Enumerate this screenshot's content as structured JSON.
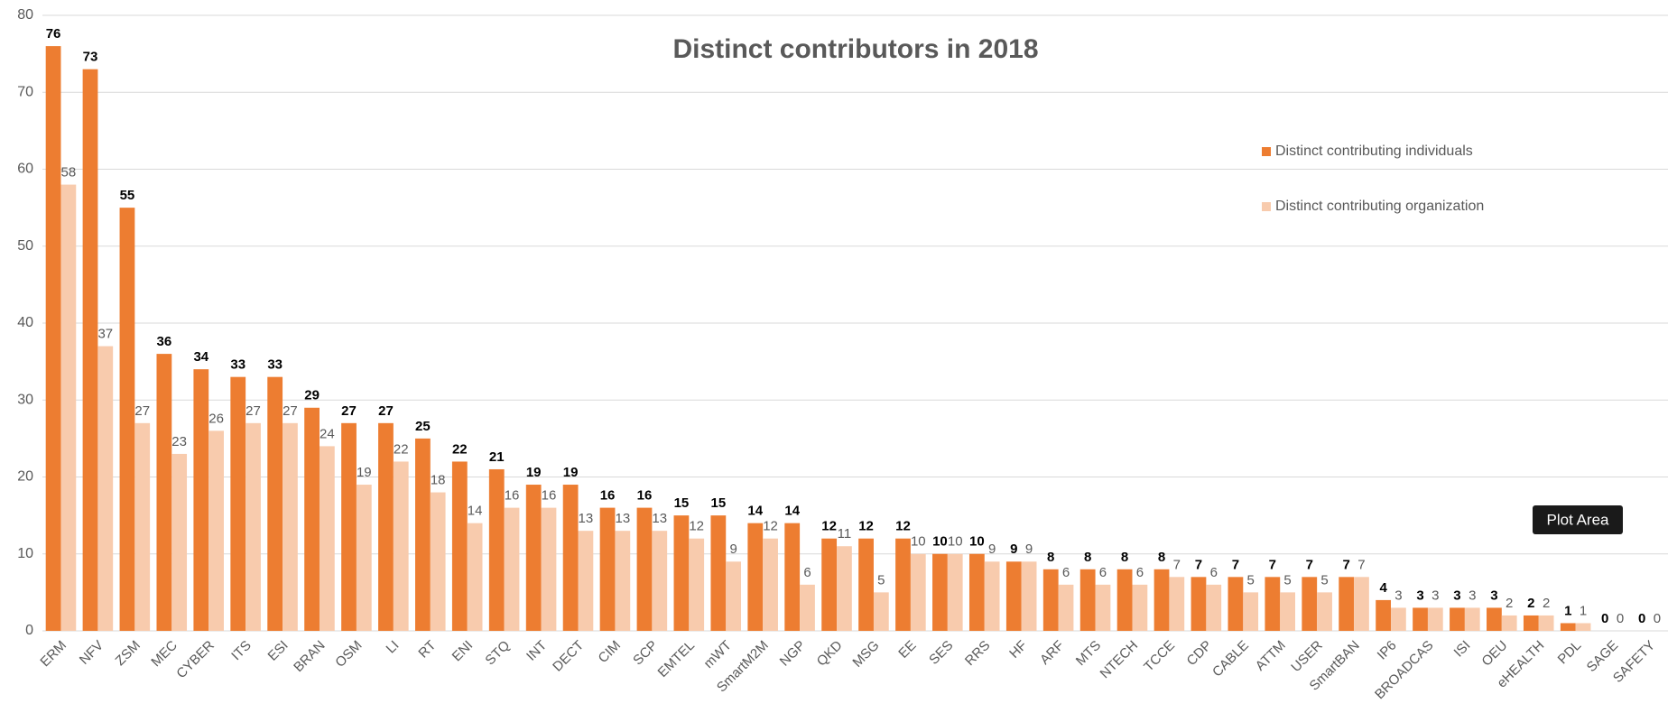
{
  "chart_data": {
    "type": "bar",
    "title": "Distinct contributors in 2018",
    "categories": [
      "ERM",
      "NFV",
      "ZSM",
      "MEC",
      "CYBER",
      "ITS",
      "ESI",
      "BRAN",
      "OSM",
      "LI",
      "RT",
      "ENI",
      "STQ",
      "INT",
      "DECT",
      "CIM",
      "SCP",
      "EMTEL",
      "mWT",
      "SmartM2M",
      "NGP",
      "QKD",
      "MSG",
      "EE",
      "SES",
      "RRS",
      "HF",
      "ARF",
      "MTS",
      "NTECH",
      "TCCE",
      "CDP",
      "CABLE",
      "ATTM",
      "USER",
      "SmartBAN",
      "IP6",
      "BROADCAS",
      "ISI",
      "OEU",
      "eHEALTH",
      "PDL",
      "SAGE",
      "SAFETY"
    ],
    "series": [
      {
        "name": "Distinct contributing individuals",
        "color": "#ED7D31",
        "values": [
          76,
          73,
          55,
          36,
          34,
          33,
          33,
          29,
          27,
          27,
          25,
          22,
          21,
          19,
          19,
          16,
          16,
          15,
          15,
          14,
          14,
          12,
          12,
          12,
          10,
          10,
          9,
          8,
          8,
          8,
          8,
          7,
          7,
          7,
          7,
          7,
          4,
          3,
          3,
          3,
          2,
          1,
          0,
          0
        ]
      },
      {
        "name": "Distinct contributing organization",
        "color": "#F8CBAD",
        "values": [
          58,
          37,
          27,
          23,
          26,
          27,
          27,
          24,
          19,
          22,
          18,
          14,
          16,
          16,
          13,
          13,
          13,
          12,
          9,
          12,
          6,
          11,
          5,
          10,
          10,
          9,
          9,
          6,
          6,
          6,
          7,
          6,
          5,
          5,
          5,
          7,
          3,
          3,
          3,
          2,
          2,
          1,
          0,
          0
        ]
      }
    ],
    "ylim": [
      0,
      80
    ],
    "yticks": [
      0,
      10,
      20,
      30,
      40,
      50,
      60,
      70,
      80
    ],
    "grid": true,
    "legend": "upper right",
    "tooltip": "Plot Area"
  }
}
